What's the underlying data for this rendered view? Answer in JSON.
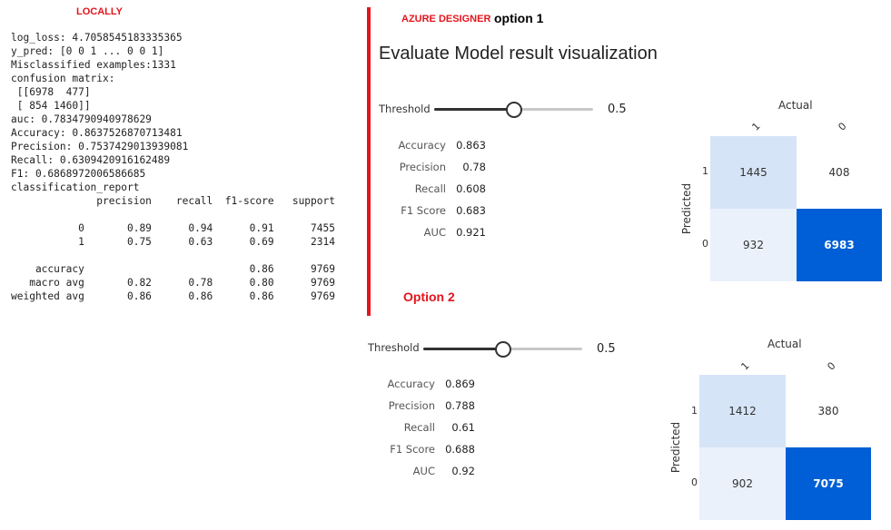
{
  "local": {
    "heading": "LOCALLY",
    "lines": [
      "log_loss: 4.7058545183335365",
      "y_pred: [0 0 1 ... 0 0 1]",
      "Misclassified examples:1331",
      "confusion matrix:",
      " [[6978  477]",
      " [ 854 1460]]",
      "auc: 0.7834790940978629",
      "Accuracy: 0.8637526870713481",
      "Precision: 0.7537429013939081",
      "Recall: 0.6309420916162489",
      "F1: 0.6868972006586685",
      "classification_report",
      "              precision    recall  f1-score   support",
      "",
      "           0       0.89      0.94      0.91      7455",
      "           1       0.75      0.63      0.69      2314",
      "",
      "    accuracy                           0.86      9769",
      "   macro avg       0.82      0.78      0.80      9769",
      "weighted avg       0.86      0.86      0.86      9769"
    ]
  },
  "azure": {
    "heading": "AZURE DESIGNER",
    "option1_label": "option 1",
    "title": "Evaluate Model result visualization",
    "option2_label": "Option 2"
  },
  "option1": {
    "threshold_label": "Threshold",
    "threshold_value": "0.5",
    "threshold_fraction": 0.5,
    "metrics": [
      {
        "name": "Accuracy",
        "value": "0.863"
      },
      {
        "name": "Precision",
        "value": "0.78"
      },
      {
        "name": "Recall",
        "value": "0.608"
      },
      {
        "name": "F1 Score",
        "value": "0.683"
      },
      {
        "name": "AUC",
        "value": "0.921"
      }
    ],
    "matrix": {
      "actual_label": "Actual",
      "predicted_label": "Predicted",
      "col_labels": [
        "1",
        "0"
      ],
      "row_labels": [
        "1",
        "0"
      ],
      "cells": [
        [
          "1445",
          "408"
        ],
        [
          "932",
          "6983"
        ]
      ],
      "colors": [
        [
          "#d6e4f7",
          "#ffffff"
        ],
        [
          "#eaf1fb",
          "#005fd6"
        ]
      ],
      "text_colors": [
        [
          "#333333",
          "#333333"
        ],
        [
          "#333333",
          "#ffffff"
        ]
      ]
    }
  },
  "option2": {
    "threshold_label": "Threshold",
    "threshold_value": "0.5",
    "threshold_fraction": 0.5,
    "metrics": [
      {
        "name": "Accuracy",
        "value": "0.869"
      },
      {
        "name": "Precision",
        "value": "0.788"
      },
      {
        "name": "Recall",
        "value": "0.61"
      },
      {
        "name": "F1 Score",
        "value": "0.688"
      },
      {
        "name": "AUC",
        "value": "0.92"
      }
    ],
    "matrix": {
      "actual_label": "Actual",
      "predicted_label": "Predicted",
      "col_labels": [
        "1",
        "0"
      ],
      "row_labels": [
        "1",
        "0"
      ],
      "cells": [
        [
          "1412",
          "380"
        ],
        [
          "902",
          "7075"
        ]
      ],
      "colors": [
        [
          "#d6e4f7",
          "#ffffff"
        ],
        [
          "#eaf1fb",
          "#005fd6"
        ]
      ],
      "text_colors": [
        [
          "#333333",
          "#333333"
        ],
        [
          "#333333",
          "#ffffff"
        ]
      ]
    }
  }
}
